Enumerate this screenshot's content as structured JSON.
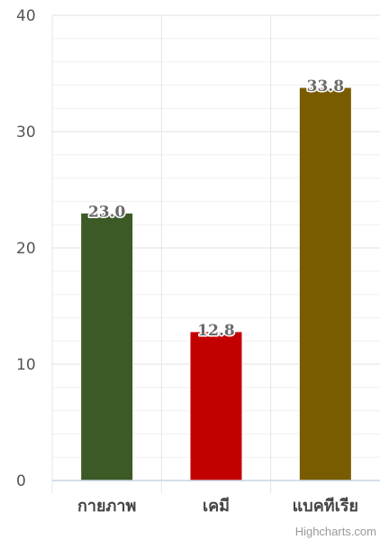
{
  "chart_data": {
    "type": "bar",
    "categories": [
      "กายภาพ",
      "เคมี",
      "แบคทีเรีย"
    ],
    "values": [
      23.0,
      12.8,
      33.8
    ],
    "value_labels": [
      "23.0",
      "12.8",
      "33.8"
    ],
    "colors": [
      "#3b5a25",
      "#c30000",
      "#7a5c00"
    ],
    "ylim": [
      0,
      40
    ],
    "yticks": [
      "0",
      "10",
      "20",
      "30",
      "40"
    ],
    "grid": true,
    "minor_grid": true,
    "legend": "none"
  },
  "credits": "Highcharts.com"
}
